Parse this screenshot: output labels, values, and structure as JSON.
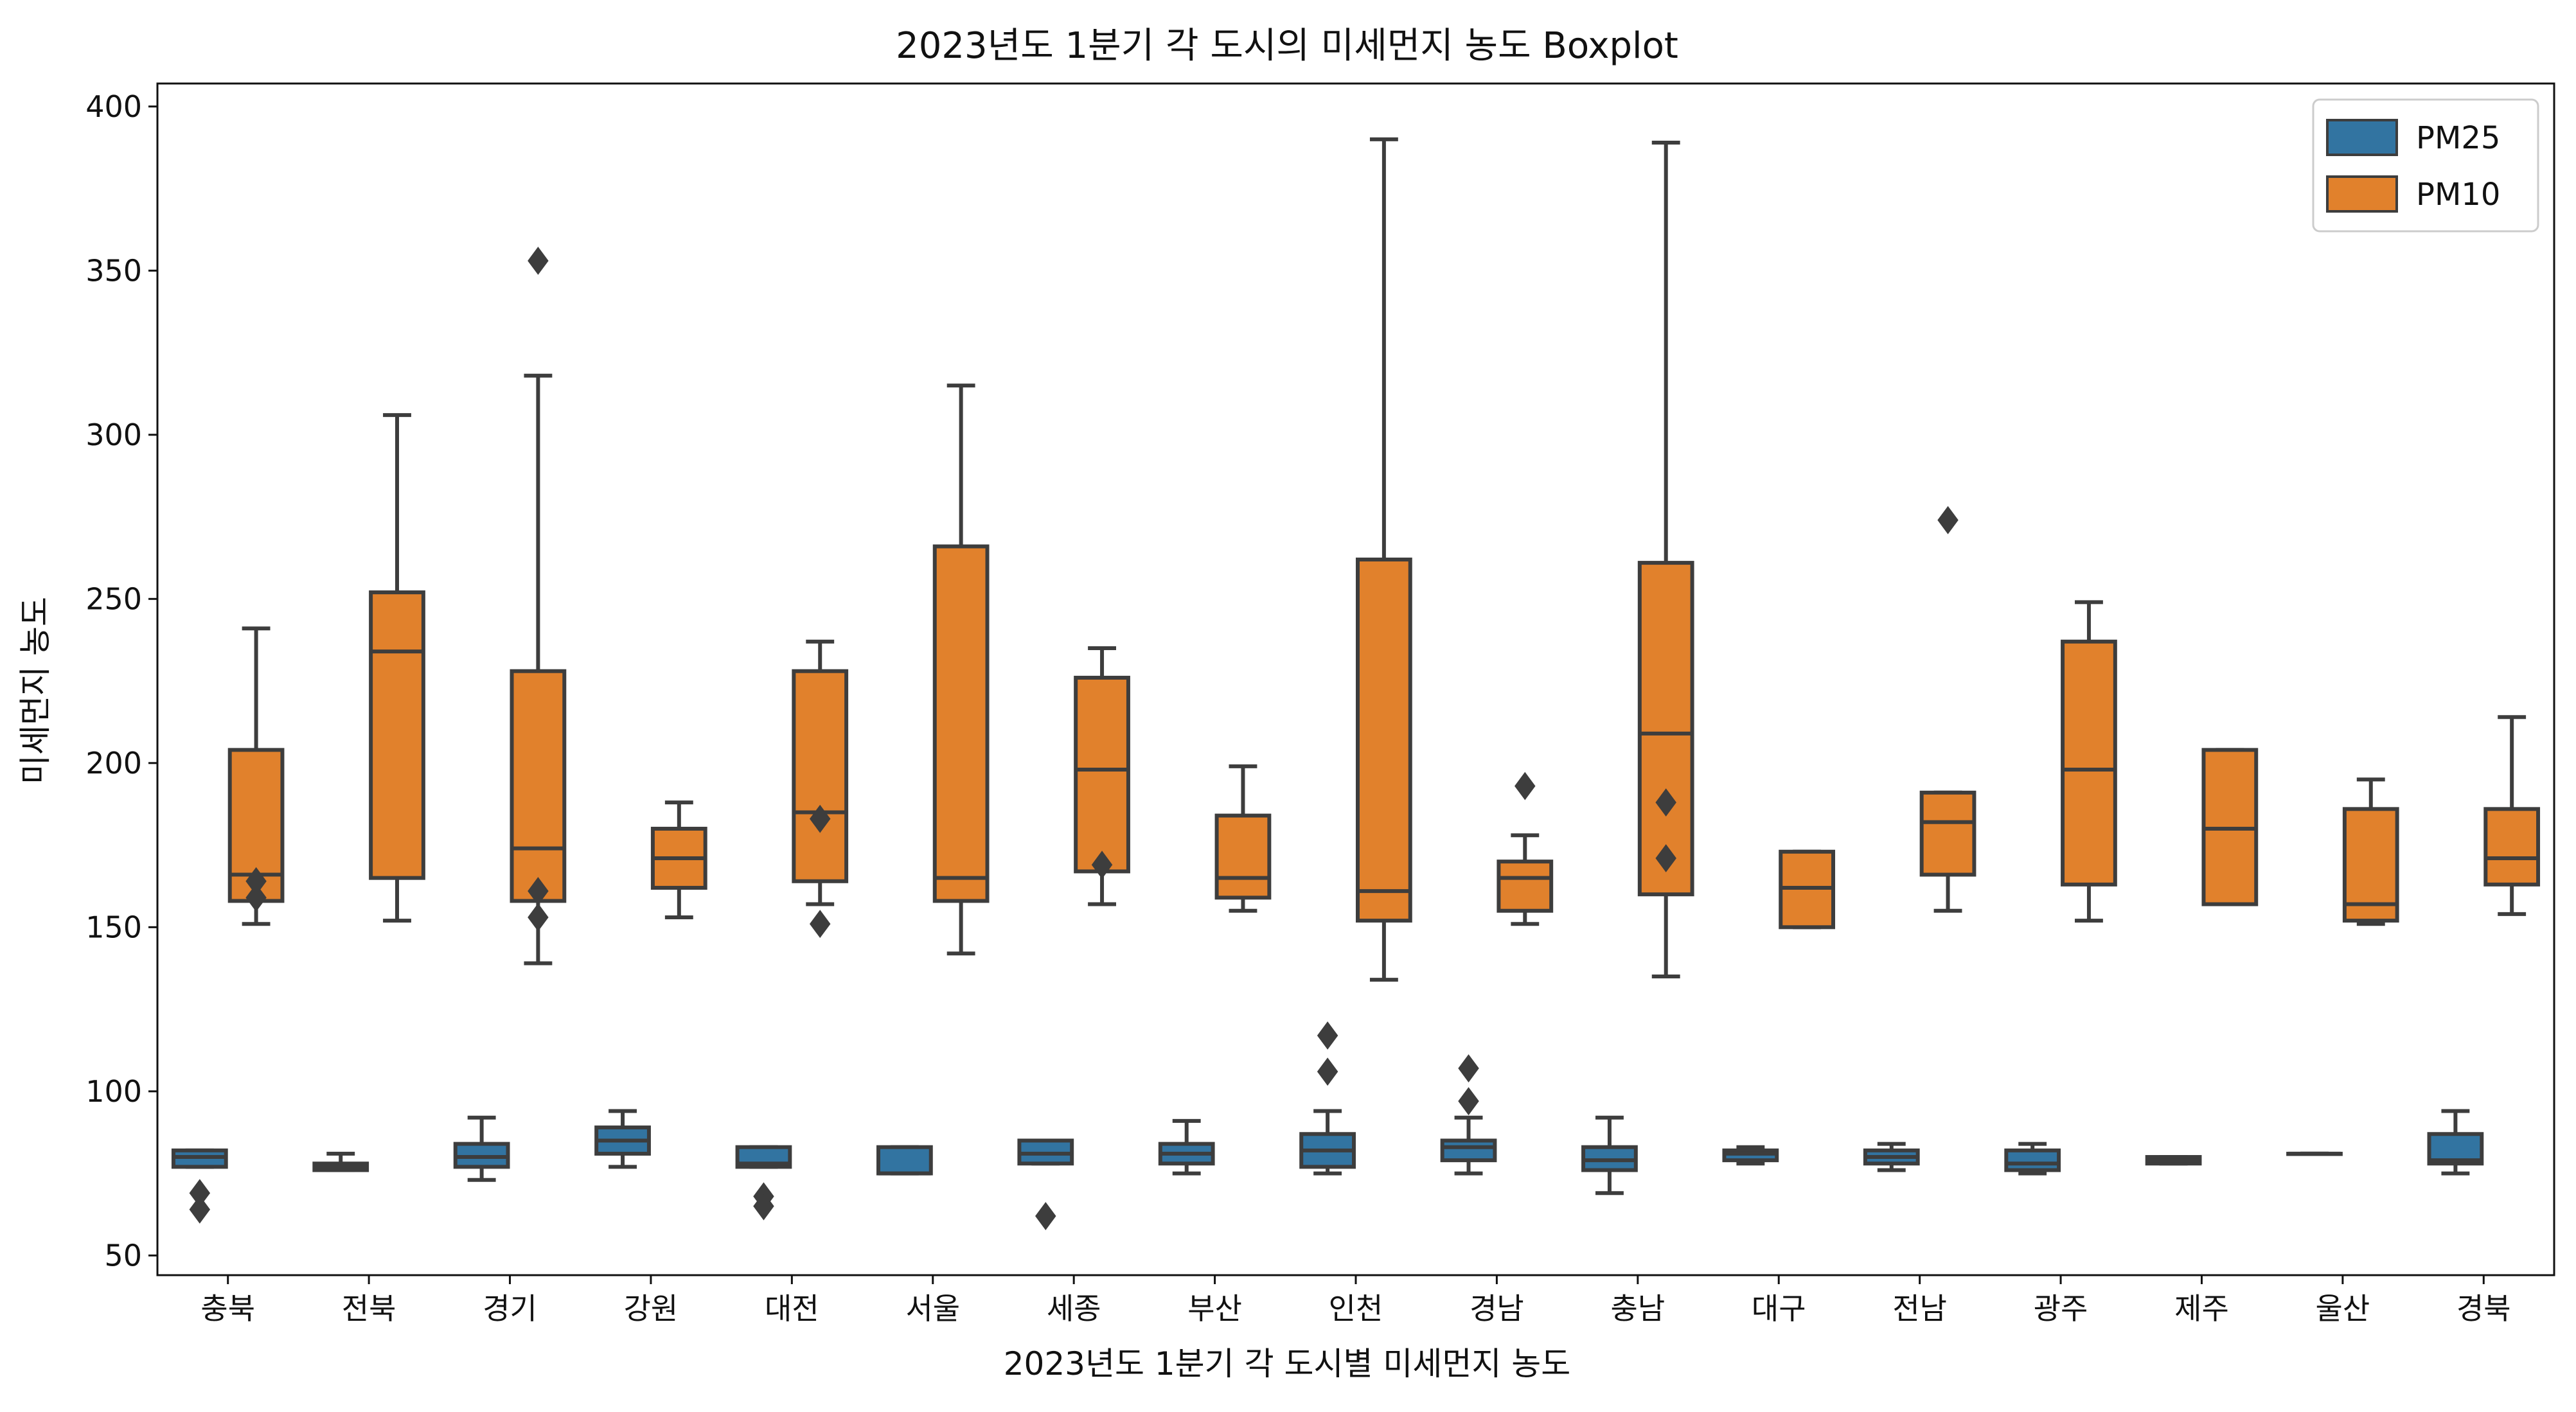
{
  "chart_data": {
    "type": "boxplot",
    "title": "2023년도 1분기 각 도시의 미세먼지 농도 Boxplot",
    "xlabel": "2023년도 1분기 각 도시별 미세먼지 농도",
    "ylabel": "미세먼지 농도",
    "ylim": [
      44,
      407
    ],
    "yticks": [
      50,
      100,
      150,
      200,
      250,
      300,
      350,
      400
    ],
    "grid": false,
    "legend_position": "top-right",
    "categories": [
      "충북",
      "전북",
      "경기",
      "강원",
      "대전",
      "서울",
      "세종",
      "부산",
      "인천",
      "경남",
      "충남",
      "대구",
      "전남",
      "광주",
      "제주",
      "울산",
      "경북"
    ],
    "series": [
      {
        "name": "PM25",
        "color": "#3274a1",
        "boxes": [
          {
            "whislo": 77,
            "q1": 77,
            "med": 80,
            "q3": 82,
            "whishi": 82,
            "fliers": [
              69,
              64
            ]
          },
          {
            "whislo": 76,
            "q1": 76,
            "med": 77,
            "q3": 78,
            "whishi": 81,
            "fliers": []
          },
          {
            "whislo": 73,
            "q1": 77,
            "med": 80,
            "q3": 84,
            "whishi": 92,
            "fliers": []
          },
          {
            "whislo": 77,
            "q1": 81,
            "med": 85,
            "q3": 89,
            "whishi": 94,
            "fliers": []
          },
          {
            "whislo": 77,
            "q1": 77,
            "med": 78,
            "q3": 83,
            "whishi": 83,
            "fliers": [
              68,
              65
            ]
          },
          {
            "whislo": 75,
            "q1": 75,
            "med": 75,
            "q3": 83,
            "whishi": 83,
            "fliers": []
          },
          {
            "whislo": 78,
            "q1": 78,
            "med": 81,
            "q3": 85,
            "whishi": 85,
            "fliers": [
              62
            ]
          },
          {
            "whislo": 75,
            "q1": 78,
            "med": 81,
            "q3": 84,
            "whishi": 91,
            "fliers": []
          },
          {
            "whislo": 75,
            "q1": 77,
            "med": 82,
            "q3": 87,
            "whishi": 94,
            "fliers": [
              117,
              106
            ]
          },
          {
            "whislo": 75,
            "q1": 79,
            "med": 83,
            "q3": 85,
            "whishi": 92,
            "fliers": [
              107,
              97
            ]
          },
          {
            "whislo": 69,
            "q1": 76,
            "med": 79,
            "q3": 83,
            "whishi": 92,
            "fliers": []
          },
          {
            "whislo": 78,
            "q1": 79,
            "med": 81,
            "q3": 82,
            "whishi": 83,
            "fliers": []
          },
          {
            "whislo": 76,
            "q1": 78,
            "med": 80,
            "q3": 82,
            "whishi": 84,
            "fliers": []
          },
          {
            "whislo": 75,
            "q1": 76,
            "med": 78,
            "q3": 82,
            "whishi": 84,
            "fliers": []
          },
          {
            "whislo": 78,
            "q1": 78,
            "med": 79,
            "q3": 80,
            "whishi": 80,
            "fliers": []
          },
          {
            "whislo": 81,
            "q1": 81,
            "med": 81,
            "q3": 81,
            "whishi": 81,
            "fliers": []
          },
          {
            "whislo": 75,
            "q1": 78,
            "med": 79,
            "q3": 87,
            "whishi": 94,
            "fliers": []
          }
        ]
      },
      {
        "name": "PM10",
        "color": "#e1812c",
        "boxes": [
          {
            "whislo": 151,
            "q1": 158,
            "med": 166,
            "q3": 204,
            "whishi": 241,
            "fliers": [
              164,
              159
            ]
          },
          {
            "whislo": 152,
            "q1": 165,
            "med": 234,
            "q3": 252,
            "whishi": 306,
            "fliers": []
          },
          {
            "whislo": 139,
            "q1": 158,
            "med": 174,
            "q3": 228,
            "whishi": 318,
            "fliers": [
              161,
              153,
              353
            ]
          },
          {
            "whislo": 153,
            "q1": 162,
            "med": 171,
            "q3": 180,
            "whishi": 188,
            "fliers": []
          },
          {
            "whislo": 157,
            "q1": 164,
            "med": 185,
            "q3": 228,
            "whishi": 237,
            "fliers": [
              183,
              151
            ]
          },
          {
            "whislo": 142,
            "q1": 158,
            "med": 165,
            "q3": 266,
            "whishi": 315,
            "fliers": []
          },
          {
            "whislo": 157,
            "q1": 167,
            "med": 198,
            "q3": 226,
            "whishi": 235,
            "fliers": [
              169
            ]
          },
          {
            "whislo": 155,
            "q1": 159,
            "med": 165,
            "q3": 184,
            "whishi": 199,
            "fliers": []
          },
          {
            "whislo": 134,
            "q1": 152,
            "med": 161,
            "q3": 262,
            "whishi": 390,
            "fliers": []
          },
          {
            "whislo": 151,
            "q1": 155,
            "med": 165,
            "q3": 170,
            "whishi": 178,
            "fliers": [
              193
            ]
          },
          {
            "whislo": 135,
            "q1": 160,
            "med": 209,
            "q3": 261,
            "whishi": 389,
            "fliers": [
              188,
              171
            ]
          },
          {
            "whislo": 150,
            "q1": 150,
            "med": 162,
            "q3": 173,
            "whishi": 173,
            "fliers": []
          },
          {
            "whislo": 155,
            "q1": 166,
            "med": 182,
            "q3": 191,
            "whishi": 191,
            "fliers": [
              274
            ]
          },
          {
            "whislo": 152,
            "q1": 163,
            "med": 198,
            "q3": 237,
            "whishi": 249,
            "fliers": []
          },
          {
            "whislo": 157,
            "q1": 157,
            "med": 180,
            "q3": 204,
            "whishi": 204,
            "fliers": []
          },
          {
            "whislo": 151,
            "q1": 152,
            "med": 157,
            "q3": 186,
            "whishi": 195,
            "fliers": []
          },
          {
            "whislo": 154,
            "q1": 163,
            "med": 171,
            "q3": 186,
            "whishi": 214,
            "fliers": []
          }
        ]
      }
    ]
  }
}
